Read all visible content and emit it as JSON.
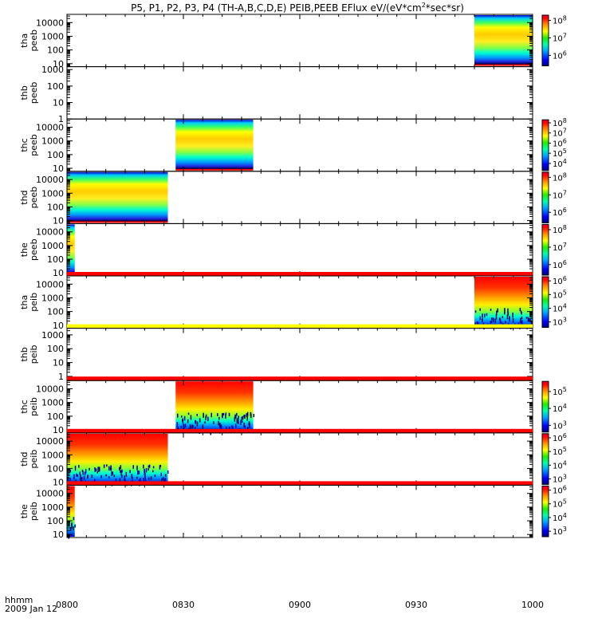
{
  "title": "P5, P1, P2, P3, P4 (TH-A,B,C,D,E) PEIB,PEEB EFlux eV/(eV*cm",
  "title_sup": "2",
  "title_end": "*sec*sr)",
  "xaxis": {
    "label": "hhmm",
    "date": "2009 Jan 12",
    "ticks": [
      "0800",
      "0830",
      "0900",
      "0930",
      "1000"
    ]
  },
  "chart_data": {
    "type": "heatmap",
    "title": "P5, P1, P2, P3, P4 (TH-A,B,C,D,E) PEIB,PEEB EFlux eV/(eV*cm^2*sec*sr)",
    "x_range_hhmm": [
      "0800",
      "1000"
    ],
    "y_scale": "log",
    "colormap": "rainbow",
    "panels": [
      {
        "name": "tha peeb",
        "line1": "tha",
        "line2": "peeb",
        "ylim": [
          6,
          40000
        ],
        "yticks": [
          "10",
          "100",
          "1000",
          "10000"
        ],
        "data_blocks": [
          {
            "start": "0945",
            "end": "1000",
            "style": "electron"
          }
        ],
        "bars": [],
        "colorbar": {
          "labels": [
            "8",
            "7",
            "6"
          ],
          "exps": [
            8,
            7,
            6
          ],
          "min_exp": 5.4,
          "max_exp": 8.3
        }
      },
      {
        "name": "thb peeb",
        "line1": "thb",
        "line2": "peeb",
        "ylim": [
          1,
          1500
        ],
        "yticks": [
          "1",
          "10",
          "100",
          "1000"
        ],
        "data_blocks": [],
        "bars": [],
        "colorbar": null
      },
      {
        "name": "thc peeb",
        "line1": "thc",
        "line2": "peeb",
        "ylim": [
          6,
          40000
        ],
        "yticks": [
          "10",
          "100",
          "1000",
          "10000"
        ],
        "data_blocks": [
          {
            "start": "0828",
            "end": "0848",
            "style": "electron"
          }
        ],
        "bars": [],
        "colorbar": {
          "labels": [
            "8",
            "7",
            "6",
            "5",
            "4"
          ],
          "exps": [
            8,
            7,
            6,
            5,
            4
          ],
          "min_exp": 3.3,
          "max_exp": 8.3
        }
      },
      {
        "name": "thd peeb",
        "line1": "thd",
        "line2": "peeb",
        "ylim": [
          6,
          40000
        ],
        "yticks": [
          "10",
          "100",
          "1000",
          "10000"
        ],
        "data_blocks": [
          {
            "start": "0800",
            "end": "0826",
            "style": "electron"
          }
        ],
        "bars": [],
        "colorbar": {
          "labels": [
            "8",
            "7",
            "6"
          ],
          "exps": [
            8,
            7,
            6
          ],
          "min_exp": 5.4,
          "max_exp": 8.3
        }
      },
      {
        "name": "the peeb",
        "line1": "the",
        "line2": "peeb",
        "ylim": [
          6,
          40000
        ],
        "yticks": [
          "10",
          "100",
          "1000",
          "10000"
        ],
        "data_blocks": [
          {
            "start": "0800",
            "end": "0802",
            "style": "electron"
          }
        ],
        "bars": [],
        "colorbar": {
          "labels": [
            "8",
            "7",
            "6"
          ],
          "exps": [
            8,
            7,
            6
          ],
          "min_exp": 5.4,
          "max_exp": 8.3
        }
      },
      {
        "name": "tha peib",
        "line1": "tha",
        "line2": "peib",
        "ylim": [
          6,
          40000
        ],
        "yticks": [
          "10",
          "100",
          "1000",
          "10000"
        ],
        "data_blocks": [
          {
            "start": "0945",
            "end": "1000",
            "style": "ion"
          }
        ],
        "bars": [
          {
            "start": "0800",
            "end": "1000",
            "color": "#ff0000"
          }
        ],
        "colorbar": {
          "labels": [
            "6",
            "5",
            "4",
            "3"
          ],
          "exps": [
            6,
            5,
            4,
            3
          ],
          "min_exp": 2.6,
          "max_exp": 6.3
        }
      },
      {
        "name": "thb peib",
        "line1": "thb",
        "line2": "peib",
        "ylim": [
          0.5,
          3000
        ],
        "yticks": [
          "1",
          "10",
          "100",
          "1000"
        ],
        "data_blocks": [],
        "bars": [
          {
            "start": "0800",
            "end": "1000",
            "color": "#ffff00"
          }
        ],
        "colorbar": null
      },
      {
        "name": "thc peib",
        "line1": "thc",
        "line2": "peib",
        "ylim": [
          6,
          40000
        ],
        "yticks": [
          "10",
          "100",
          "1000",
          "10000"
        ],
        "data_blocks": [
          {
            "start": "0828",
            "end": "0848",
            "style": "ion"
          }
        ],
        "bars": [
          {
            "start": "0800",
            "end": "1000",
            "color": "#ff0000"
          }
        ],
        "colorbar": {
          "labels": [
            "5",
            "4",
            "3"
          ],
          "exps": [
            5,
            4,
            3
          ],
          "min_exp": 2.6,
          "max_exp": 5.6
        }
      },
      {
        "name": "thd peib",
        "line1": "thd",
        "line2": "peib",
        "ylim": [
          6,
          40000
        ],
        "yticks": [
          "10",
          "100",
          "1000",
          "10000"
        ],
        "data_blocks": [
          {
            "start": "0800",
            "end": "0826",
            "style": "ion"
          }
        ],
        "bars": [
          {
            "start": "0800",
            "end": "1000",
            "color": "#ff0000"
          }
        ],
        "colorbar": {
          "labels": [
            "6",
            "5",
            "4",
            "3"
          ],
          "exps": [
            6,
            5,
            4,
            3
          ],
          "min_exp": 2.6,
          "max_exp": 6.3
        }
      },
      {
        "name": "the peib",
        "line1": "the",
        "line2": "peib",
        "ylim": [
          6,
          40000
        ],
        "yticks": [
          "10",
          "100",
          "1000",
          "10000"
        ],
        "data_blocks": [
          {
            "start": "0800",
            "end": "0802",
            "style": "ion"
          }
        ],
        "bars": [
          {
            "start": "0800",
            "end": "1000",
            "color": "#ff0000"
          }
        ],
        "colorbar": {
          "labels": [
            "6",
            "5",
            "4",
            "3"
          ],
          "exps": [
            6,
            5,
            4,
            3
          ],
          "min_exp": 2.6,
          "max_exp": 6.3
        }
      }
    ]
  }
}
